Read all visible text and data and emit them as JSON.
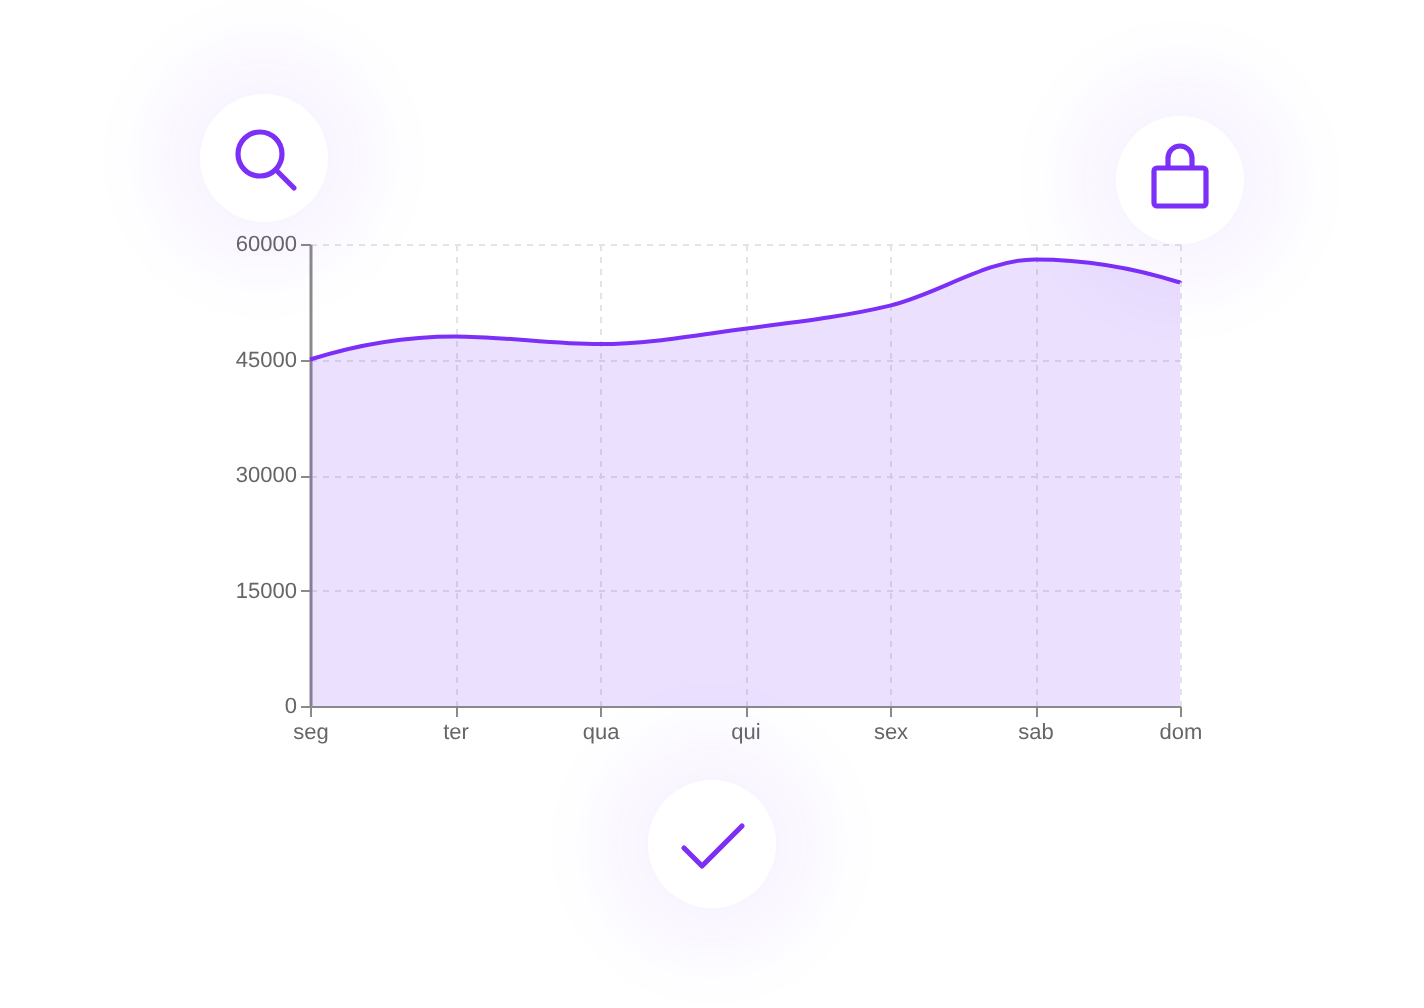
{
  "chart_data": {
    "type": "area",
    "categories": [
      "seg",
      "ter",
      "qua",
      "qui",
      "sex",
      "sab",
      "dom"
    ],
    "series": [
      {
        "color": "#7b2ff7",
        "values": [
          45000,
          48000,
          47000,
          49000,
          52000,
          58000,
          55000
        ]
      }
    ],
    "ylim": [
      0,
      60000
    ],
    "yticks": [
      0,
      15000,
      30000,
      45000,
      60000
    ],
    "grid": true
  }
}
